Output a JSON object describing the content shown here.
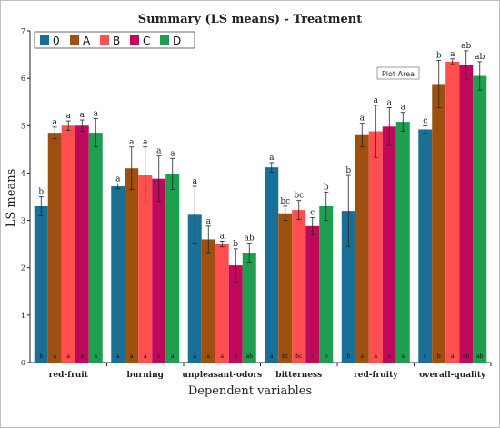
{
  "chart_data": {
    "type": "bar",
    "title": "Summary (LS means) - Treatment",
    "xlabel": "Dependent variables",
    "ylabel": "LS means",
    "ylim": [
      0,
      7
    ],
    "yticks": [
      0,
      1,
      2,
      3,
      4,
      5,
      6,
      7
    ],
    "grid": false,
    "legend_position": "top-left",
    "categories": [
      "red-fruit",
      "burning",
      "unpleasant-odors",
      "bitterness",
      "red-fruity",
      "overall-quality"
    ],
    "series": [
      {
        "name": "0",
        "color": "#1a6f96",
        "values": [
          3.3,
          3.72,
          3.12,
          4.12,
          3.2,
          4.92
        ],
        "errors": [
          0.2,
          0.05,
          0.6,
          0.1,
          0.75,
          0.08
        ],
        "letters": [
          "b",
          "a",
          "a",
          "a",
          "b",
          "c"
        ]
      },
      {
        "name": "A",
        "color": "#9e5011",
        "values": [
          4.85,
          4.1,
          2.6,
          3.15,
          4.8,
          5.88
        ],
        "errors": [
          0.12,
          0.45,
          0.28,
          0.15,
          0.25,
          0.5
        ],
        "letters": [
          "a",
          "a",
          "a",
          "bc",
          "a",
          "b"
        ]
      },
      {
        "name": "B",
        "color": "#ff4f4f",
        "values": [
          5.0,
          3.95,
          2.5,
          3.22,
          4.88,
          6.35
        ],
        "errors": [
          0.1,
          0.6,
          0.06,
          0.2,
          0.55,
          0.06
        ],
        "letters": [
          "a",
          "a",
          "a",
          "bc",
          "a",
          "a"
        ]
      },
      {
        "name": "C",
        "color": "#bf0a5c",
        "values": [
          5.0,
          3.88,
          2.05,
          2.88,
          4.98,
          6.28
        ],
        "errors": [
          0.12,
          0.48,
          0.35,
          0.18,
          0.4,
          0.3
        ],
        "letters": [
          "a",
          "a",
          "b",
          "c",
          "a",
          "ab"
        ]
      },
      {
        "name": "D",
        "color": "#1e9e4f",
        "values": [
          4.85,
          3.98,
          2.32,
          3.3,
          5.08,
          6.05
        ],
        "errors": [
          0.3,
          0.33,
          0.2,
          0.3,
          0.2,
          0.3
        ],
        "letters": [
          "a",
          "a",
          "ab",
          "b",
          "a",
          "ab"
        ]
      }
    ],
    "annotations": [
      "Plot Area"
    ]
  }
}
